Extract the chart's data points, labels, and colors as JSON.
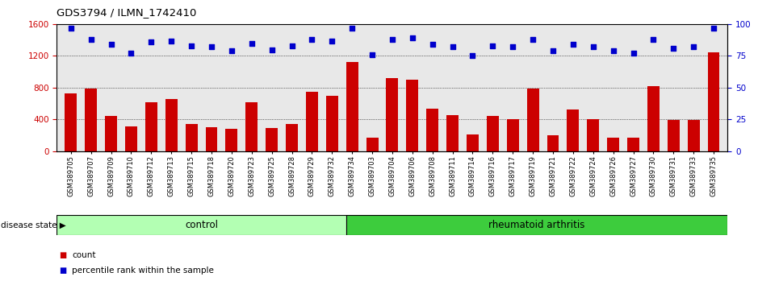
{
  "title": "GDS3794 / ILMN_1742410",
  "samples": [
    "GSM389705",
    "GSM389707",
    "GSM389709",
    "GSM389710",
    "GSM389712",
    "GSM389713",
    "GSM389715",
    "GSM389718",
    "GSM389720",
    "GSM389723",
    "GSM389725",
    "GSM389728",
    "GSM389729",
    "GSM389732",
    "GSM389734",
    "GSM389703",
    "GSM389704",
    "GSM389706",
    "GSM389708",
    "GSM389711",
    "GSM389714",
    "GSM389716",
    "GSM389717",
    "GSM389719",
    "GSM389721",
    "GSM389722",
    "GSM389724",
    "GSM389726",
    "GSM389727",
    "GSM389730",
    "GSM389731",
    "GSM389733",
    "GSM389735"
  ],
  "counts": [
    730,
    790,
    440,
    310,
    620,
    660,
    340,
    300,
    280,
    620,
    290,
    340,
    750,
    700,
    1120,
    170,
    920,
    900,
    530,
    450,
    210,
    440,
    400,
    790,
    200,
    520,
    400,
    170,
    170,
    820,
    390,
    390,
    1250
  ],
  "percentile": [
    97,
    88,
    84,
    77,
    86,
    87,
    83,
    82,
    79,
    85,
    80,
    83,
    88,
    87,
    97,
    76,
    88,
    89,
    84,
    82,
    75,
    83,
    82,
    88,
    79,
    84,
    82,
    79,
    77,
    88,
    81,
    82,
    97
  ],
  "n_control": 14,
  "n_rheumatoid": 19,
  "ylim_left": [
    0,
    1600
  ],
  "ylim_right": [
    0,
    100
  ],
  "yticks_left": [
    0,
    400,
    800,
    1200,
    1600
  ],
  "yticks_right": [
    0,
    25,
    50,
    75,
    100
  ],
  "bar_color": "#cc0000",
  "dot_color": "#0000cc",
  "control_color": "#b3ffb3",
  "rheumatoid_color": "#3dcc3d",
  "plot_bg_color": "#e8e8e8",
  "label_count": "count",
  "label_percentile": "percentile rank within the sample",
  "group_label_control": "control",
  "group_label_rheumatoid": "rheumatoid arthritis",
  "disease_state_label": "disease state"
}
